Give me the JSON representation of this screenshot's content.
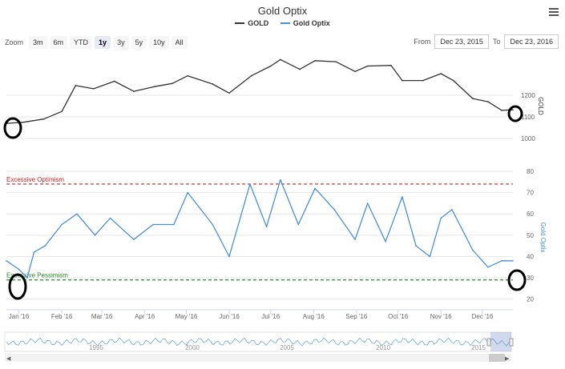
{
  "title": "Gold Optix",
  "legend": [
    {
      "name": "GOLD",
      "color": "#333333"
    },
    {
      "name": "Gold Optix",
      "color": "#4a90d9"
    }
  ],
  "zoom": {
    "label": "Zoom",
    "buttons": [
      "3m",
      "6m",
      "YTD",
      "1y",
      "3y",
      "5y",
      "10y",
      "All"
    ],
    "active": "1y"
  },
  "range": {
    "from_label": "From",
    "from_value": "Dec 23, 2015",
    "to_label": "To",
    "to_value": "Dec 23, 2016"
  },
  "chart_data": [
    {
      "type": "line",
      "title": "",
      "ylabel": "GOLD",
      "yticks": [
        1000,
        1100,
        1200
      ],
      "series": [
        {
          "name": "GOLD",
          "color": "#333333",
          "x": [
            "2015-12-23",
            "2016-01-04",
            "2016-01-19",
            "2016-02-01",
            "2016-02-11",
            "2016-02-24",
            "2016-03-10",
            "2016-03-24",
            "2016-04-08",
            "2016-04-21",
            "2016-05-02",
            "2016-05-20",
            "2016-06-01",
            "2016-06-17",
            "2016-07-01",
            "2016-07-08",
            "2016-07-22",
            "2016-08-02",
            "2016-08-17",
            "2016-08-31",
            "2016-09-09",
            "2016-09-26",
            "2016-10-04",
            "2016-10-19",
            "2016-11-01",
            "2016-11-10",
            "2016-11-24",
            "2016-12-05",
            "2016-12-15",
            "2016-12-23"
          ],
          "values": [
            1070,
            1075,
            1090,
            1125,
            1245,
            1230,
            1265,
            1218,
            1240,
            1255,
            1290,
            1252,
            1210,
            1290,
            1335,
            1365,
            1320,
            1360,
            1355,
            1310,
            1335,
            1338,
            1268,
            1268,
            1300,
            1268,
            1185,
            1170,
            1130,
            1133
          ]
        }
      ]
    },
    {
      "type": "line",
      "title": "",
      "ylabel": "Gold Optix",
      "yticks": [
        20,
        30,
        40,
        50,
        60,
        70,
        80
      ],
      "annotations": [
        {
          "label": "Excessive Optimism",
          "value": 74,
          "color": "#cc2222"
        },
        {
          "label": "Excessive Pessimism",
          "value": 29,
          "color": "#2a8a2a"
        }
      ],
      "series": [
        {
          "name": "Gold Optix",
          "color": "#4a90d9",
          "x": [
            "2015-12-23",
            "2016-01-01",
            "2016-01-07",
            "2016-01-12",
            "2016-01-20",
            "2016-02-01",
            "2016-02-12",
            "2016-02-25",
            "2016-03-07",
            "2016-03-24",
            "2016-04-07",
            "2016-04-22",
            "2016-05-02",
            "2016-05-20",
            "2016-06-01",
            "2016-06-16",
            "2016-06-28",
            "2016-07-08",
            "2016-07-21",
            "2016-08-02",
            "2016-08-16",
            "2016-08-31",
            "2016-09-09",
            "2016-09-22",
            "2016-10-04",
            "2016-10-14",
            "2016-10-24",
            "2016-11-01",
            "2016-11-09",
            "2016-11-24",
            "2016-12-05",
            "2016-12-15",
            "2016-12-23"
          ],
          "values": [
            38,
            34,
            30,
            42,
            45,
            55,
            60,
            50,
            58,
            48,
            55,
            55,
            70,
            55,
            40,
            74,
            54,
            76,
            55,
            72,
            62,
            48,
            65,
            47,
            68,
            45,
            40,
            58,
            62,
            43,
            35,
            38,
            38
          ]
        }
      ]
    }
  ],
  "x_axis": {
    "ticks": [
      "Jan '16",
      "Feb '16",
      "Mar '16",
      "Apr '16",
      "May '16",
      "Jun '16",
      "Jul '16",
      "Aug '16",
      "Sep '16",
      "Oct '16",
      "Nov '16",
      "Dec '16"
    ]
  },
  "navigator": {
    "labels": [
      "1995",
      "2000",
      "2005",
      "2010",
      "2015"
    ]
  }
}
